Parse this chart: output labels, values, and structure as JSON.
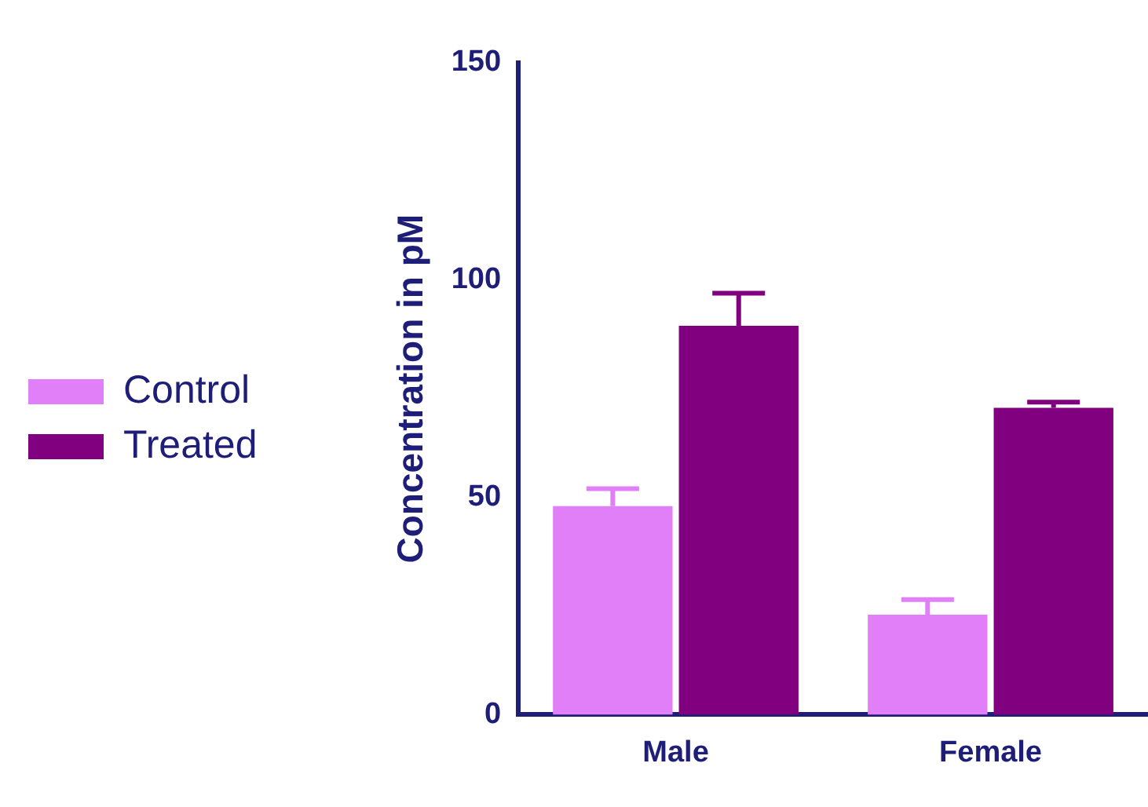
{
  "chart_data": {
    "type": "bar",
    "ylabel": "Concentration in pM",
    "categories": [
      "Male",
      "Female"
    ],
    "series": [
      {
        "name": "Control",
        "color": "#e07ff7",
        "values": [
          48,
          23
        ],
        "errors": [
          4,
          3.5
        ]
      },
      {
        "name": "Treated",
        "color": "#800080",
        "values": [
          89.5,
          70.6
        ],
        "errors": [
          7.5,
          1.3
        ]
      }
    ],
    "ylim": [
      0,
      150
    ],
    "yticks": [
      0,
      50,
      100,
      150
    ],
    "grid": false,
    "legend": "left"
  }
}
